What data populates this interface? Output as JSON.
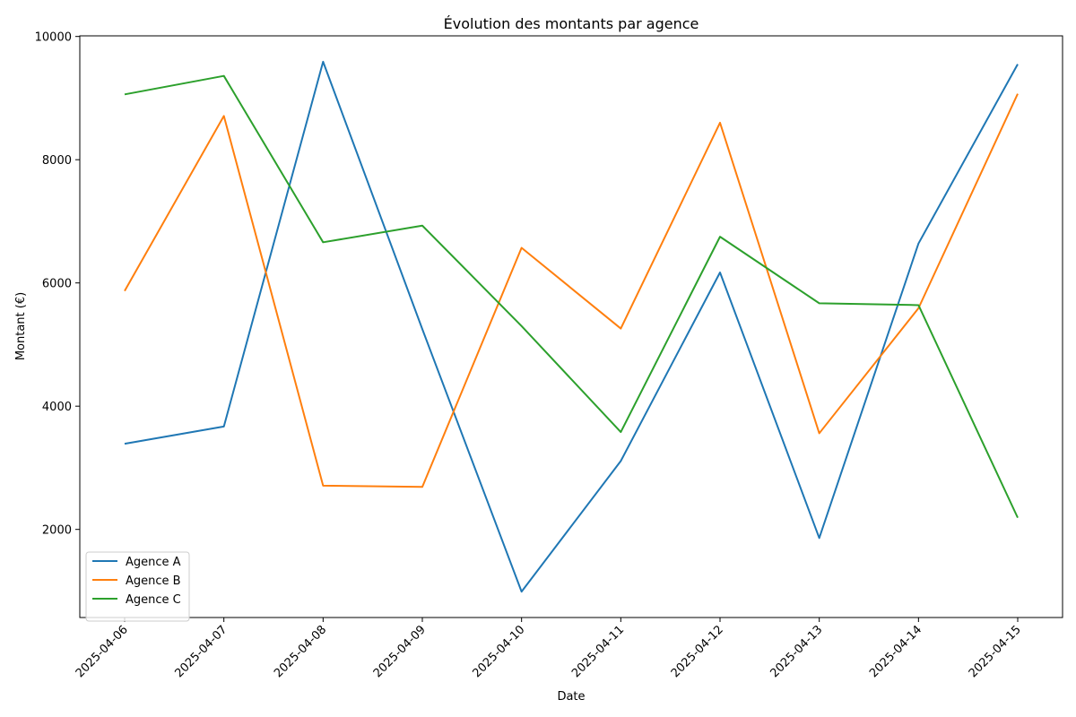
{
  "chart_data": {
    "type": "line",
    "title": "Évolution des montants par agence",
    "xlabel": "Date",
    "ylabel": "Montant (€)",
    "categories": [
      "2025-04-06",
      "2025-04-07",
      "2025-04-08",
      "2025-04-09",
      "2025-04-10",
      "2025-04-11",
      "2025-04-12",
      "2025-04-13",
      "2025-04-14",
      "2025-04-15"
    ],
    "ylim": [
      570,
      10010
    ],
    "yticks": [
      2000,
      4000,
      6000,
      8000,
      10000
    ],
    "grid": false,
    "legend_position": "bottom-left",
    "series": [
      {
        "name": "Agence A",
        "color": "#1f77b4",
        "values": [
          3390,
          3670,
          9590,
          5250,
          990,
          3110,
          6170,
          1860,
          6640,
          9550
        ]
      },
      {
        "name": "Agence B",
        "color": "#ff7f0e",
        "values": [
          5870,
          8710,
          2710,
          2690,
          6570,
          5260,
          8600,
          3560,
          5590,
          9070
        ]
      },
      {
        "name": "Agence C",
        "color": "#2ca02c",
        "values": [
          9060,
          9360,
          6660,
          6930,
          5300,
          3580,
          6750,
          5670,
          5640,
          2190
        ]
      }
    ]
  }
}
